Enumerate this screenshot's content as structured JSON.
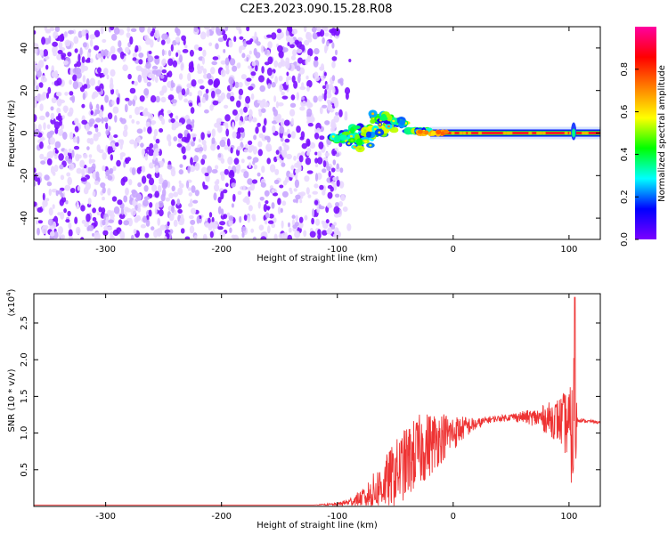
{
  "title": "C2E3.2023.090.15.28.R08",
  "chart_data": [
    {
      "type": "heatmap",
      "xlabel": "Height of straight line (km)",
      "ylabel": "Frequency (Hz)",
      "xlim": [
        -362,
        127
      ],
      "ylim": [
        -50,
        50
      ],
      "xticks": [
        -300,
        -200,
        -100,
        0,
        100
      ],
      "xtick_labels": [
        "-300",
        "-200",
        "-100",
        "0",
        "100"
      ],
      "yticks": [
        -40,
        -20,
        0,
        20,
        40
      ],
      "ytick_labels": [
        "-40",
        "-20",
        "0",
        "20",
        "40"
      ],
      "colorbar": {
        "label": "Normalized spectral amplitude",
        "range": [
          0,
          1
        ],
        "ticks": [
          0.0,
          0.2,
          0.4,
          0.6,
          0.8
        ],
        "tick_labels": [
          "0.0",
          "0.2",
          "0.4",
          "0.6",
          "0.8"
        ],
        "colormap": [
          "#ffffff",
          "#7b00ff",
          "#0000ff",
          "#00ffff",
          "#00ff00",
          "#ffff00",
          "#ff8000",
          "#ff0000",
          "#ff00a0"
        ]
      },
      "features": {
        "noise_region_x": [
          -362,
          -95
        ],
        "noise_amplitude": 0.1,
        "carrier_frequency": 0,
        "signal_start_x": -105,
        "scintillation_region_x": [
          -105,
          -20
        ],
        "max_frequency_spread_hz": 12,
        "steady_carrier_x": [
          -20,
          127
        ],
        "steady_carrier_amplitude": 0.85
      }
    },
    {
      "type": "line",
      "xlabel": "Height of straight line (km)",
      "ylabel": "SNR (10 * v/v)",
      "y_multiplier_label": "(x10",
      "y_multiplier_exp": "4",
      "y_multiplier_close": ")",
      "xlim": [
        -362,
        127
      ],
      "ylim": [
        0,
        2.9
      ],
      "xticks": [
        -300,
        -200,
        -100,
        0,
        100
      ],
      "xtick_labels": [
        "-300",
        "-200",
        "-100",
        "0",
        "100"
      ],
      "yticks": [
        0.5,
        1.0,
        1.5,
        2.0,
        2.5
      ],
      "ytick_labels": [
        "0.5",
        "1.0",
        "1.5",
        "2.0",
        "2.5"
      ],
      "color": "#ee3333",
      "series": [
        {
          "x": [
            -362,
            -300,
            -200,
            -120,
            -100,
            -90,
            -80,
            -70,
            -60,
            -50,
            -40,
            -30,
            -20,
            -10,
            0,
            10,
            20,
            30,
            40,
            50,
            60,
            70,
            80,
            90,
            95,
            100,
            103,
            105,
            107,
            110,
            115,
            120,
            127
          ],
          "y": [
            0.02,
            0.02,
            0.02,
            0.02,
            0.03,
            0.06,
            0.1,
            0.18,
            0.3,
            0.45,
            0.6,
            0.75,
            0.85,
            0.95,
            1.0,
            1.08,
            1.12,
            1.18,
            1.2,
            1.22,
            1.22,
            1.21,
            1.2,
            1.18,
            1.15,
            1.1,
            0.9,
            1.3,
            1.18,
            1.18,
            1.16,
            1.16,
            1.14
          ],
          "noise_amplitude": [
            0,
            0,
            0,
            0,
            0.02,
            0.05,
            0.12,
            0.25,
            0.35,
            0.45,
            0.5,
            0.5,
            0.45,
            0.35,
            0.25,
            0.15,
            0.08,
            0.05,
            0.04,
            0.05,
            0.08,
            0.12,
            0.2,
            0.3,
            0.4,
            0.5,
            0.8,
            1.5,
            0.05,
            0.03,
            0.02,
            0.02,
            0.02
          ]
        }
      ],
      "peak": {
        "x": 105,
        "y": 2.85
      }
    }
  ]
}
